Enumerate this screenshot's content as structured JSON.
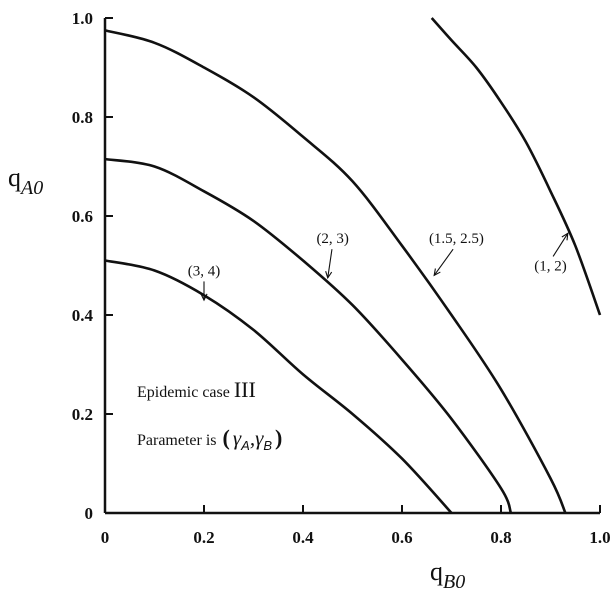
{
  "chart_data": {
    "type": "line",
    "title": "",
    "xlabel": {
      "main": "q",
      "sub": "B0"
    },
    "ylabel": {
      "main": "q",
      "sub": "A0"
    },
    "xlim": [
      0,
      1
    ],
    "ylim": [
      0,
      1
    ],
    "x_ticks": [
      {
        "value": 0,
        "label": "0"
      },
      {
        "value": 0.2,
        "label": "0.2"
      },
      {
        "value": 0.4,
        "label": "0.4"
      },
      {
        "value": 0.6,
        "label": "0.6"
      },
      {
        "value": 0.8,
        "label": "0.8"
      },
      {
        "value": 1.0,
        "label": "1.0"
      }
    ],
    "y_ticks": [
      {
        "value": 0,
        "label": "0"
      },
      {
        "value": 0.2,
        "label": "0.2"
      },
      {
        "value": 0.4,
        "label": "0.4"
      },
      {
        "value": 0.6,
        "label": "0.6"
      },
      {
        "value": 0.8,
        "label": "0.8"
      },
      {
        "value": 1.0,
        "label": "1.0"
      }
    ],
    "series": [
      {
        "name": "(3, 4)",
        "points": [
          [
            0,
            0.51
          ],
          [
            0.1,
            0.49
          ],
          [
            0.2,
            0.44
          ],
          [
            0.3,
            0.37
          ],
          [
            0.4,
            0.28
          ],
          [
            0.5,
            0.2
          ],
          [
            0.6,
            0.11
          ],
          [
            0.7,
            0.0
          ]
        ]
      },
      {
        "name": "(2, 3)",
        "points": [
          [
            0,
            0.715
          ],
          [
            0.1,
            0.7
          ],
          [
            0.2,
            0.65
          ],
          [
            0.3,
            0.59
          ],
          [
            0.4,
            0.51
          ],
          [
            0.5,
            0.42
          ],
          [
            0.6,
            0.31
          ],
          [
            0.7,
            0.19
          ],
          [
            0.8,
            0.05
          ],
          [
            0.82,
            0.0
          ]
        ]
      },
      {
        "name": "(1.5, 2.5)",
        "points": [
          [
            0,
            0.975
          ],
          [
            0.1,
            0.95
          ],
          [
            0.2,
            0.9
          ],
          [
            0.3,
            0.84
          ],
          [
            0.4,
            0.76
          ],
          [
            0.5,
            0.67
          ],
          [
            0.6,
            0.54
          ],
          [
            0.7,
            0.4
          ],
          [
            0.8,
            0.25
          ],
          [
            0.9,
            0.07
          ],
          [
            0.93,
            0.0
          ]
        ]
      },
      {
        "name": "(1, 2)",
        "points": [
          [
            0.66,
            1.0
          ],
          [
            0.7,
            0.955
          ],
          [
            0.75,
            0.9
          ],
          [
            0.8,
            0.83
          ],
          [
            0.85,
            0.75
          ],
          [
            0.9,
            0.65
          ],
          [
            0.95,
            0.54
          ],
          [
            1.0,
            0.4
          ]
        ]
      }
    ],
    "annotations": [
      {
        "text": "(3, 4)",
        "label_at": [
          0.2,
          0.48
        ],
        "arrow_to": [
          0.2,
          0.43
        ]
      },
      {
        "text": "(2, 3)",
        "label_at": [
          0.46,
          0.545
        ],
        "arrow_to": [
          0.45,
          0.475
        ]
      },
      {
        "text": "(1.5, 2.5)",
        "label_at": [
          0.71,
          0.545
        ],
        "arrow_to": [
          0.665,
          0.48
        ]
      },
      {
        "text": "(1, 2)",
        "label_at": [
          0.9,
          0.49
        ],
        "arrow_to": [
          0.935,
          0.565
        ]
      }
    ],
    "notes": {
      "case_prefix": "Epidemic case ",
      "case_numeral": "III",
      "param_prefix": "Parameter is ",
      "param_open": "(",
      "param_gamma1": "γ",
      "param_sub1": "A",
      "param_comma": ",",
      "param_gamma2": "γ",
      "param_sub2": "B",
      "param_close": ")"
    },
    "grid": false,
    "legend": "none"
  }
}
